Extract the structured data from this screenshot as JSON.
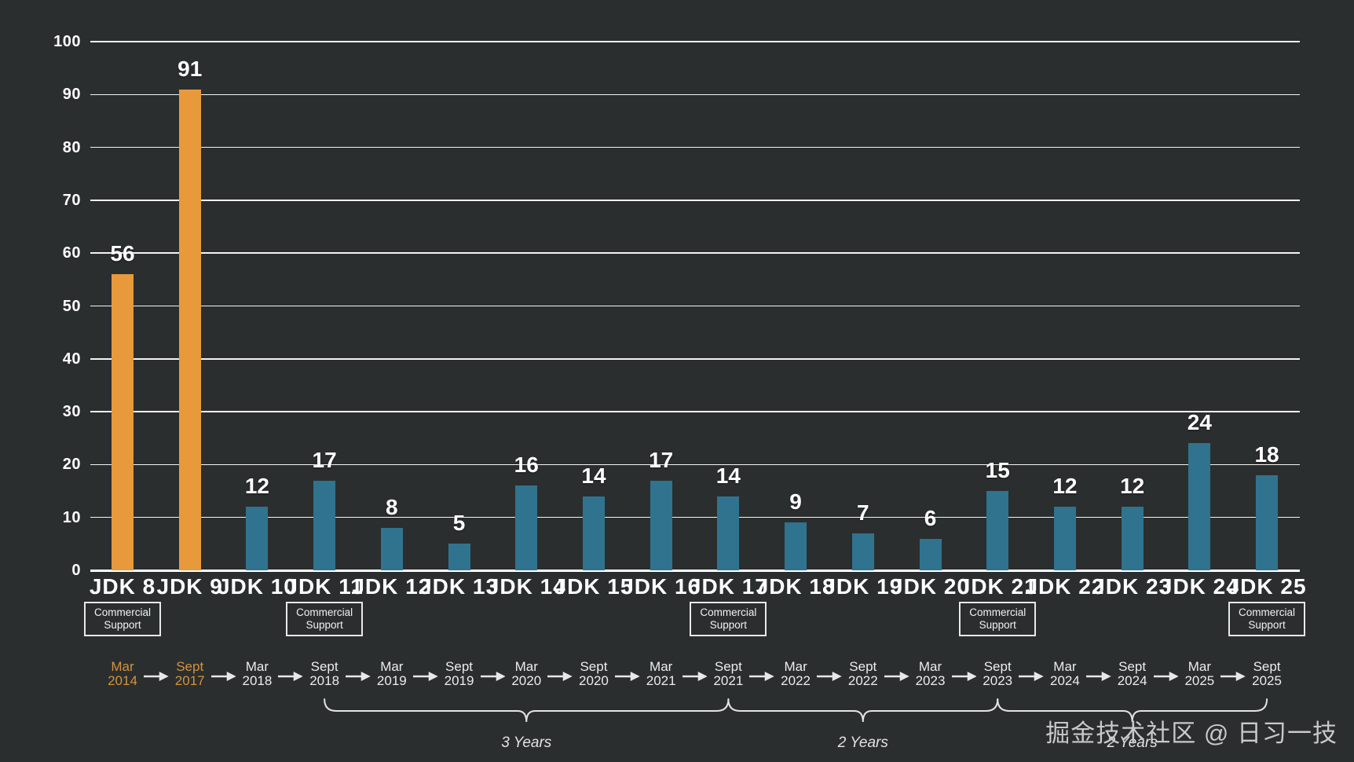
{
  "chart_data": {
    "type": "bar",
    "title": "",
    "xlabel": "",
    "ylabel": "",
    "categories": [
      "JDK 8",
      "JDK 9",
      "JDK 10",
      "JDK 11",
      "JDK 12",
      "JDK 13",
      "JDK 14",
      "JDK 15",
      "JDK 16",
      "JDK 17",
      "JDK 18",
      "JDK 19",
      "JDK 20",
      "JDK 21",
      "JDK 22",
      "JDK 23",
      "JDK 24",
      "JDK 25"
    ],
    "values": [
      56,
      91,
      12,
      17,
      8,
      5,
      16,
      14,
      17,
      14,
      9,
      7,
      6,
      15,
      12,
      12,
      24,
      18
    ],
    "highlighted_categories": [
      "JDK 8",
      "JDK 9"
    ],
    "ylim": [
      0,
      100
    ],
    "yticks": [
      0,
      10,
      20,
      30,
      40,
      50,
      60,
      70,
      80,
      90,
      100
    ],
    "grid": true,
    "legend": "none",
    "bar_color": "#30738F",
    "highlight_color": "#E8993B",
    "commercial_support": {
      "label": "Commercial Support",
      "indices": [
        0,
        3,
        9,
        13,
        17
      ]
    },
    "timeline": {
      "highlight_color": "#D2943F",
      "dates": [
        {
          "month": "Mar",
          "year": "2014",
          "highlight": true
        },
        {
          "month": "Sept",
          "year": "2017",
          "highlight": true
        },
        {
          "month": "Mar",
          "year": "2018",
          "highlight": false
        },
        {
          "month": "Sept",
          "year": "2018",
          "highlight": false
        },
        {
          "month": "Mar",
          "year": "2019",
          "highlight": false
        },
        {
          "month": "Sept",
          "year": "2019",
          "highlight": false
        },
        {
          "month": "Mar",
          "year": "2020",
          "highlight": false
        },
        {
          "month": "Sept",
          "year": "2020",
          "highlight": false
        },
        {
          "month": "Mar",
          "year": "2021",
          "highlight": false
        },
        {
          "month": "Sept",
          "year": "2021",
          "highlight": false
        },
        {
          "month": "Mar",
          "year": "2022",
          "highlight": false
        },
        {
          "month": "Sept",
          "year": "2022",
          "highlight": false
        },
        {
          "month": "Mar",
          "year": "2023",
          "highlight": false
        },
        {
          "month": "Sept",
          "year": "2023",
          "highlight": false
        },
        {
          "month": "Mar",
          "year": "2024",
          "highlight": false
        },
        {
          "month": "Sept",
          "year": "2024",
          "highlight": false
        },
        {
          "month": "Mar",
          "year": "2025",
          "highlight": false
        },
        {
          "month": "Sept",
          "year": "2025",
          "highlight": false
        }
      ]
    },
    "braces": [
      {
        "label": "3 Years",
        "from_index": 3,
        "to_index": 9
      },
      {
        "label": "2 Years",
        "from_index": 9,
        "to_index": 13
      },
      {
        "label": "2 Years",
        "from_index": 13,
        "to_index": 17
      }
    ]
  },
  "watermark": "掘金技术社区 @ 日习一技",
  "colors": {
    "background": "#2B2E2E",
    "gridline": "#FFFFFF",
    "text": "#FFFFFF",
    "watermark": "#C9C9C9"
  }
}
